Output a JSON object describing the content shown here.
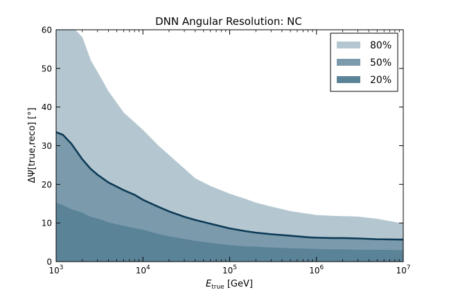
{
  "chart_data": {
    "type": "area",
    "title": "DNN Angular Resolution: NC",
    "xlabel": "E_true [GeV]",
    "xlabel_parts": {
      "main": "E",
      "sub": "true",
      "unit": " [GeV]"
    },
    "ylabel": "ΔΨ[true,reco] [°]",
    "xscale": "log",
    "xlim": [
      1000,
      10000000
    ],
    "ylim": [
      0,
      60
    ],
    "x_ticks": [
      {
        "value": 1000,
        "base": "10",
        "exp": "3"
      },
      {
        "value": 10000,
        "base": "10",
        "exp": "4"
      },
      {
        "value": 100000,
        "base": "10",
        "exp": "5"
      },
      {
        "value": 1000000,
        "base": "10",
        "exp": "6"
      },
      {
        "value": 10000000,
        "base": "10",
        "exp": "7"
      }
    ],
    "y_ticks": [
      0,
      10,
      20,
      30,
      40,
      50,
      60
    ],
    "legend_position": "top-right",
    "x": [
      1000,
      1200,
      1500,
      2000,
      2500,
      3000,
      4000,
      6000,
      8000,
      10000,
      15000,
      20000,
      30000,
      40000,
      60000,
      100000,
      150000,
      200000,
      300000,
      500000,
      800000,
      1000000,
      1500000,
      2000000,
      3000000,
      5000000,
      10000000
    ],
    "series": [
      {
        "name": "80%",
        "color": "#b4c7d0",
        "lower": [
          0,
          0,
          0,
          0,
          0,
          0,
          0,
          0,
          0,
          0,
          0,
          0,
          0,
          0,
          0,
          0,
          0,
          0,
          0,
          0,
          0,
          0,
          0,
          0,
          0,
          0,
          0
        ],
        "upper": [
          62,
          62,
          61,
          58,
          52,
          49,
          44,
          38.5,
          36,
          34,
          30,
          27.5,
          24,
          21.5,
          19.5,
          17.5,
          16.2,
          15.2,
          14.2,
          13,
          12.3,
          12,
          11.8,
          11.7,
          11.6,
          11,
          9.8
        ]
      },
      {
        "name": "50%",
        "color": "#7b9bac",
        "lower": [
          0,
          0,
          0,
          0,
          0,
          0,
          0,
          0,
          0,
          0,
          0,
          0,
          0,
          0,
          0,
          0,
          0,
          0,
          0,
          0,
          0,
          0,
          0,
          0,
          0,
          0,
          0
        ],
        "upper": [
          33.5,
          32.8,
          30.5,
          26.5,
          24,
          22.5,
          20.5,
          18.5,
          17.3,
          16,
          14.2,
          13,
          11.6,
          10.8,
          9.8,
          8.6,
          7.9,
          7.5,
          7.1,
          6.7,
          6.3,
          6.2,
          6.1,
          6.1,
          6.0,
          5.8,
          5.7
        ]
      },
      {
        "name": "20%",
        "color": "#5b8398",
        "lower": [
          0,
          0,
          0,
          0,
          0,
          0,
          0,
          0,
          0,
          0,
          0,
          0,
          0,
          0,
          0,
          0,
          0,
          0,
          0,
          0,
          0,
          0,
          0,
          0,
          0,
          0,
          0
        ],
        "upper": [
          15.2,
          14.5,
          13.5,
          12.6,
          11.5,
          11.1,
          10.1,
          9.2,
          8.6,
          8.2,
          7.1,
          6.5,
          5.8,
          5.3,
          4.8,
          4.2,
          3.9,
          3.8,
          3.6,
          3.4,
          3.3,
          3.2,
          3.1,
          3.1,
          3.0,
          3.0,
          2.9
        ]
      }
    ],
    "median_line_color": "#0d3a56"
  }
}
